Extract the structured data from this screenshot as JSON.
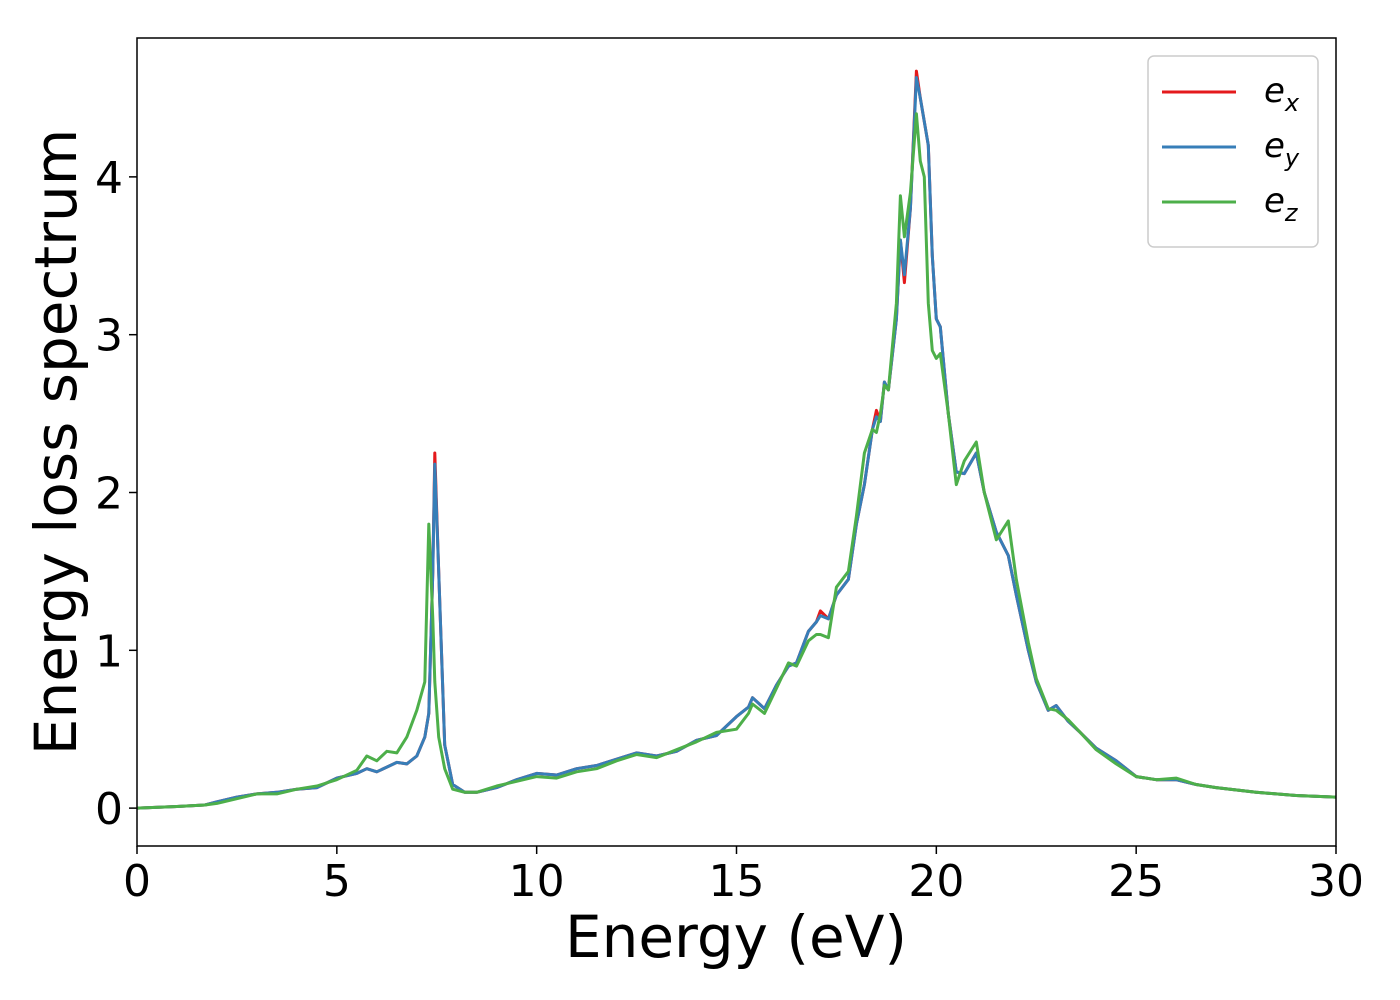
{
  "chart_data": {
    "type": "line",
    "xlabel": "Energy (eV)",
    "ylabel": "Energy loss spectrum",
    "x": [
      0,
      1,
      1.7,
      2,
      2.5,
      3,
      3.5,
      4,
      4.5,
      5,
      5.5,
      5.75,
      6,
      6.25,
      6.5,
      6.75,
      7,
      7.2,
      7.3,
      7.4,
      7.45,
      7.55,
      7.7,
      7.9,
      8.2,
      8.5,
      9,
      9.5,
      10,
      10.5,
      11,
      11.5,
      12,
      12.5,
      13,
      13.5,
      14,
      14.5,
      15,
      15.3,
      15.4,
      15.7,
      16,
      16.3,
      16.5,
      16.8,
      17,
      17.1,
      17.3,
      17.5,
      17.8,
      18,
      18.2,
      18.4,
      18.5,
      18.6,
      18.7,
      18.8,
      19,
      19.1,
      19.2,
      19.35,
      19.5,
      19.6,
      19.7,
      19.8,
      19.9,
      20,
      20.1,
      20.3,
      20.5,
      20.7,
      21,
      21.2,
      21.5,
      21.8,
      22,
      22.3,
      22.5,
      22.8,
      23,
      23.3,
      23.6,
      24,
      24.5,
      25,
      25.5,
      26,
      26.5,
      27,
      28,
      29,
      30
    ],
    "series": [
      {
        "name": "e_x",
        "color": "#e41a1c",
        "values": [
          0,
          0.01,
          0.02,
          0.04,
          0.07,
          0.09,
          0.1,
          0.12,
          0.13,
          0.19,
          0.22,
          0.25,
          0.23,
          0.26,
          0.29,
          0.28,
          0.33,
          0.45,
          0.6,
          1.5,
          2.25,
          1.5,
          0.4,
          0.15,
          0.1,
          0.1,
          0.13,
          0.18,
          0.22,
          0.21,
          0.25,
          0.27,
          0.31,
          0.35,
          0.33,
          0.36,
          0.43,
          0.46,
          0.58,
          0.64,
          0.7,
          0.63,
          0.78,
          0.9,
          0.92,
          1.12,
          1.18,
          1.25,
          1.2,
          1.35,
          1.45,
          1.8,
          2.05,
          2.4,
          2.52,
          2.45,
          2.7,
          2.65,
          3.1,
          3.6,
          3.33,
          3.8,
          4.67,
          4.5,
          4.35,
          4.2,
          3.5,
          3.1,
          3.05,
          2.5,
          2.13,
          2.12,
          2.25,
          2.0,
          1.75,
          1.6,
          1.35,
          1.0,
          0.8,
          0.62,
          0.65,
          0.55,
          0.48,
          0.38,
          0.3,
          0.2,
          0.18,
          0.18,
          0.15,
          0.13,
          0.1,
          0.08,
          0.07
        ]
      },
      {
        "name": "e_y",
        "color": "#377eb8",
        "values": [
          0,
          0.01,
          0.02,
          0.04,
          0.07,
          0.09,
          0.1,
          0.12,
          0.13,
          0.19,
          0.22,
          0.25,
          0.23,
          0.26,
          0.29,
          0.28,
          0.33,
          0.45,
          0.6,
          1.5,
          2.18,
          1.5,
          0.4,
          0.15,
          0.1,
          0.1,
          0.13,
          0.18,
          0.22,
          0.21,
          0.25,
          0.27,
          0.31,
          0.35,
          0.33,
          0.36,
          0.43,
          0.46,
          0.58,
          0.64,
          0.7,
          0.63,
          0.78,
          0.9,
          0.92,
          1.12,
          1.18,
          1.22,
          1.2,
          1.35,
          1.45,
          1.8,
          2.05,
          2.4,
          2.48,
          2.45,
          2.7,
          2.65,
          3.1,
          3.6,
          3.38,
          3.8,
          4.63,
          4.5,
          4.35,
          4.2,
          3.5,
          3.1,
          3.05,
          2.5,
          2.13,
          2.12,
          2.25,
          2.0,
          1.75,
          1.6,
          1.35,
          1.0,
          0.8,
          0.62,
          0.65,
          0.55,
          0.48,
          0.38,
          0.3,
          0.2,
          0.18,
          0.18,
          0.15,
          0.13,
          0.1,
          0.08,
          0.07
        ]
      },
      {
        "name": "e_z",
        "color": "#4daf4a",
        "values": [
          0,
          0.01,
          0.02,
          0.03,
          0.06,
          0.09,
          0.09,
          0.12,
          0.14,
          0.18,
          0.24,
          0.33,
          0.3,
          0.36,
          0.35,
          0.45,
          0.62,
          0.8,
          1.8,
          1.2,
          0.8,
          0.45,
          0.25,
          0.12,
          0.1,
          0.1,
          0.14,
          0.17,
          0.2,
          0.19,
          0.23,
          0.25,
          0.3,
          0.34,
          0.32,
          0.37,
          0.42,
          0.48,
          0.5,
          0.6,
          0.66,
          0.6,
          0.76,
          0.92,
          0.9,
          1.06,
          1.1,
          1.1,
          1.08,
          1.4,
          1.5,
          1.85,
          2.25,
          2.4,
          2.38,
          2.5,
          2.68,
          2.65,
          3.2,
          3.88,
          3.62,
          3.9,
          4.4,
          4.1,
          4.0,
          3.2,
          2.9,
          2.85,
          2.88,
          2.5,
          2.05,
          2.2,
          2.32,
          2.0,
          1.7,
          1.82,
          1.45,
          1.05,
          0.82,
          0.63,
          0.62,
          0.56,
          0.48,
          0.37,
          0.28,
          0.2,
          0.18,
          0.19,
          0.15,
          0.13,
          0.1,
          0.08,
          0.07
        ]
      }
    ],
    "xlim": [
      0,
      30
    ],
    "xticks": [
      0,
      5,
      10,
      15,
      20,
      25,
      30
    ],
    "ylim": [
      -0.24,
      4.88
    ],
    "yticks": [
      0,
      1,
      2,
      3,
      4
    ],
    "grid": false,
    "legend": "upper right"
  }
}
